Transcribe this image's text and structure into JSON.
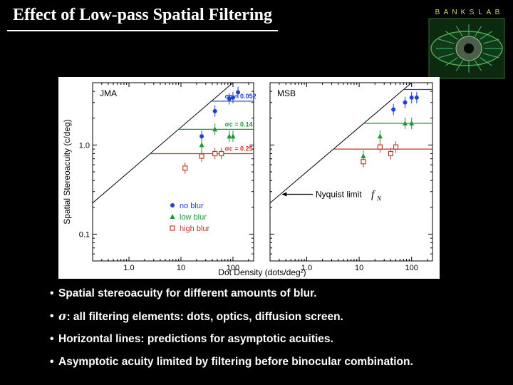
{
  "slide": {
    "title": "Effect of Low-pass Spatial Filtering"
  },
  "logo": {
    "text": "BANKSLAB"
  },
  "bullets": [
    {
      "text": "Spatial stereoacuity for different amounts of blur."
    },
    {
      "symbol": "σ",
      "text": ": all filtering elements: dots, optics, diffusion screen."
    },
    {
      "text": "Horizontal lines: predictions for asymptotic acuities."
    },
    {
      "text": "Asymptotic acuity limited by filtering before binocular combination."
    }
  ],
  "colors": {
    "no_blur": "#1f3fd6",
    "low_blur": "#1e9a33",
    "high_blur": "#c0392b",
    "nyquist": "#000000"
  },
  "chart_data": {
    "type": "scatter",
    "xlabel": "Dot Density (dots/deg²)",
    "ylabel": "Spatial Stereoacuity (c/deg)",
    "x_scale": "log",
    "y_scale": "log",
    "xlim": [
      0.2,
      250
    ],
    "ylim": [
      0.05,
      5
    ],
    "x_ticks": [
      1.0,
      10,
      100
    ],
    "x_tick_labels": [
      "1.0",
      "10",
      "100"
    ],
    "y_ticks": [
      0.1,
      1.0
    ],
    "y_tick_labels": [
      "0.1",
      "1.0"
    ],
    "legend": {
      "placement": "bottom-left of left panel",
      "entries": [
        "no blur",
        "low blur",
        "high blur"
      ]
    },
    "panels": [
      {
        "name": "JMA",
        "series": [
          {
            "name": "no blur",
            "marker": "circle",
            "points": [
              [
                25,
                1.25
              ],
              [
                45,
                2.4
              ],
              [
                85,
                3.3
              ],
              [
                100,
                3.4
              ],
              [
                125,
                3.9
              ]
            ]
          },
          {
            "name": "low blur",
            "marker": "triangle",
            "points": [
              [
                25,
                1.0
              ],
              [
                45,
                1.5
              ],
              [
                85,
                1.25
              ],
              [
                100,
                1.25
              ]
            ]
          },
          {
            "name": "high blur",
            "marker": "square",
            "points": [
              [
                12,
                0.55
              ],
              [
                25,
                0.75
              ],
              [
                45,
                0.8
              ],
              [
                60,
                0.8
              ]
            ]
          }
        ],
        "asymptotes": [
          {
            "series": "no blur",
            "value": 3.1,
            "label": "σc = 0.052"
          },
          {
            "series": "low blur",
            "value": 1.5,
            "label": "σc = 0.14"
          },
          {
            "series": "high blur",
            "value": 0.8,
            "label": "σc = 0.25"
          }
        ]
      },
      {
        "name": "MSB",
        "series": [
          {
            "name": "no blur",
            "marker": "circle",
            "points": [
              [
                45,
                2.5
              ],
              [
                75,
                3.0
              ],
              [
                100,
                3.4
              ],
              [
                125,
                3.4
              ]
            ]
          },
          {
            "name": "low blur",
            "marker": "triangle",
            "points": [
              [
                12,
                0.75
              ],
              [
                25,
                1.25
              ],
              [
                75,
                1.75
              ],
              [
                100,
                1.75
              ]
            ]
          },
          {
            "name": "high blur",
            "marker": "square",
            "points": [
              [
                12,
                0.65
              ],
              [
                25,
                0.95
              ],
              [
                40,
                0.8
              ],
              [
                50,
                0.95
              ]
            ]
          }
        ],
        "asymptotes": [
          {
            "series": "no blur",
            "value": 4.2
          },
          {
            "series": "low blur",
            "value": 1.75
          },
          {
            "series": "high blur",
            "value": 0.9
          }
        ],
        "annotation": {
          "text": "Nyquist limit",
          "symbol": "f",
          "subscript": "N"
        }
      }
    ]
  }
}
